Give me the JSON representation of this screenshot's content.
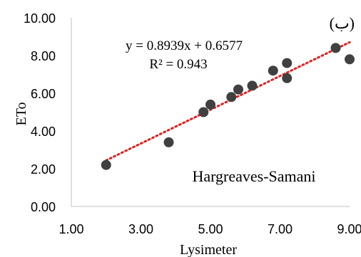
{
  "chart_data": {
    "type": "scatter",
    "xlabel": "Lysimeter",
    "ylabel": "ETo",
    "panel_label": "(ب)",
    "method_label": "Hargreaves-Samani",
    "equation": "y = 0.8939x + 0.6577",
    "r_squared": "R² = 0.943",
    "xlim": [
      1.0,
      9.0
    ],
    "ylim": [
      0.0,
      10.0
    ],
    "x_ticks": [
      "1.00",
      "3.00",
      "5.00",
      "7.00",
      "9.00"
    ],
    "y_ticks": [
      "0.00",
      "2.00",
      "4.00",
      "6.00",
      "8.00",
      "10.00"
    ],
    "grid": false,
    "trendline": {
      "slope": 0.8939,
      "intercept": 0.6577,
      "x_range": [
        2.0,
        9.0
      ],
      "style": "dotted",
      "color": "#e02020"
    },
    "marker_color": "#404040",
    "points": [
      {
        "x": 2.0,
        "y": 2.2
      },
      {
        "x": 3.8,
        "y": 3.4
      },
      {
        "x": 4.8,
        "y": 5.0
      },
      {
        "x": 5.0,
        "y": 5.4
      },
      {
        "x": 5.6,
        "y": 5.8
      },
      {
        "x": 5.8,
        "y": 6.2
      },
      {
        "x": 6.2,
        "y": 6.4
      },
      {
        "x": 6.8,
        "y": 7.2
      },
      {
        "x": 7.2,
        "y": 7.6
      },
      {
        "x": 7.2,
        "y": 6.8
      },
      {
        "x": 8.6,
        "y": 8.4
      },
      {
        "x": 9.0,
        "y": 7.8
      }
    ]
  }
}
